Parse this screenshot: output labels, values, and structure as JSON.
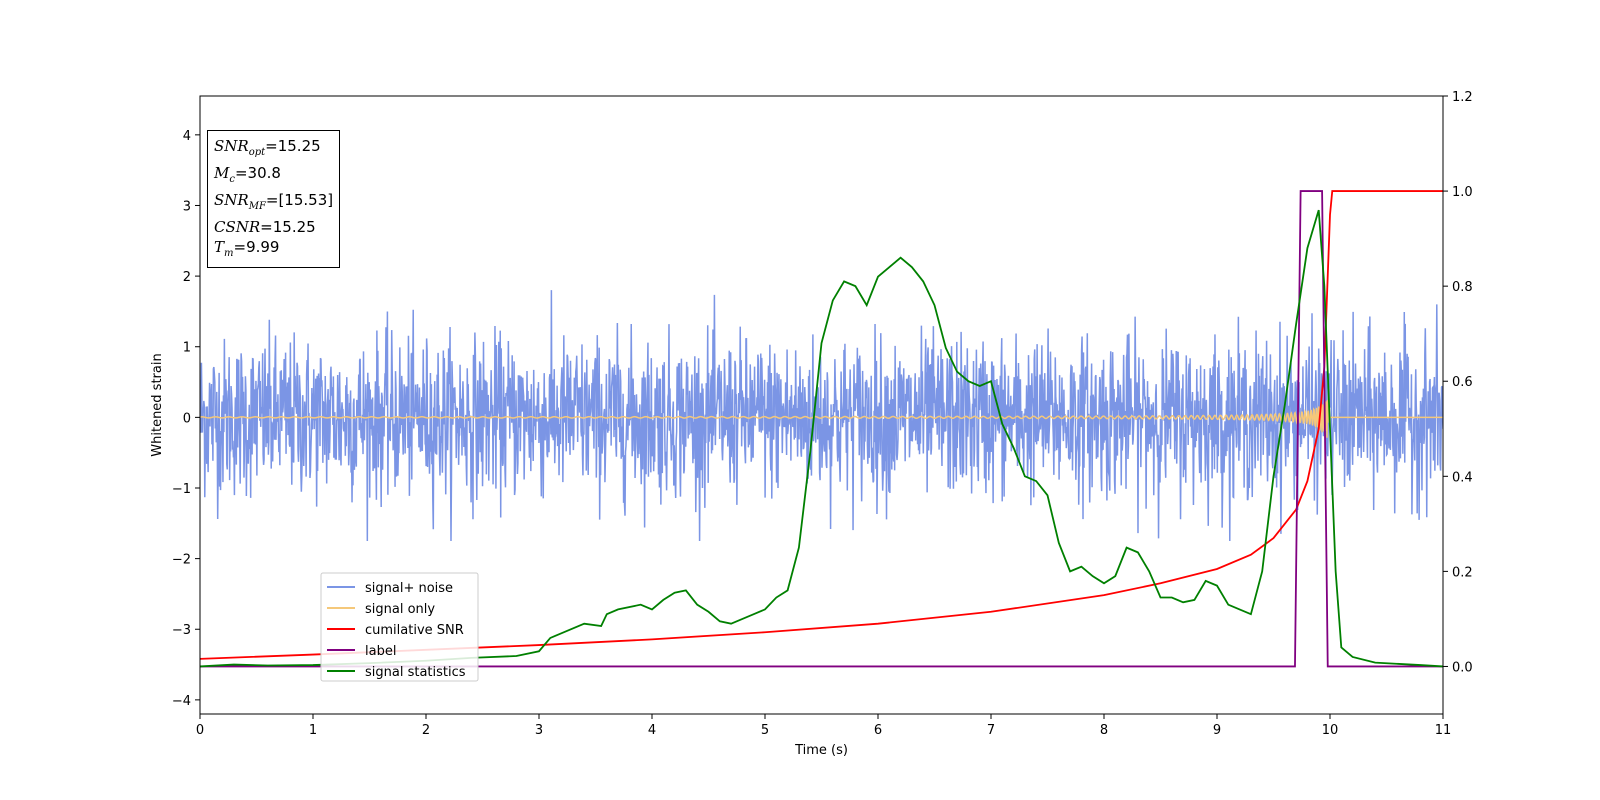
{
  "chart_data": {
    "type": "line",
    "title": "",
    "xlabel": "Time (s)",
    "ylabel": "Whitened strain",
    "y2label": "",
    "xlim": [
      0,
      11
    ],
    "ylim": [
      -4.2,
      4.55
    ],
    "y2lim": [
      -0.1,
      1.2
    ],
    "x_ticks": [
      0,
      1,
      2,
      3,
      4,
      5,
      6,
      7,
      8,
      9,
      10,
      11
    ],
    "y_ticks": [
      -4,
      -3,
      -2,
      -1,
      0,
      1,
      2,
      3,
      4
    ],
    "y_tick_labels": [
      "−4",
      "−3",
      "−2",
      "−1",
      "0",
      "1",
      "2",
      "3",
      "4"
    ],
    "y2_ticks": [
      0.0,
      0.2,
      0.4,
      0.6,
      0.8,
      1.0,
      1.2
    ],
    "y2_tick_labels": [
      "0.0",
      "0.2",
      "0.4",
      "0.6",
      "0.8",
      "1.0",
      "1.2"
    ],
    "grid": false,
    "legend_position": "lower-left",
    "annotation": {
      "snr_opt": {
        "sym": "SNR",
        "sub": "opt",
        "value": "=15.25"
      },
      "mc": {
        "sym": "M",
        "sub": "c",
        "value": "=30.8"
      },
      "snr_mf": {
        "sym": "SNR",
        "sub": "MF",
        "value": "=[15.53]"
      },
      "csnr": {
        "sym": "CSNR",
        "sub": "",
        "value": "=15.25"
      },
      "tm": {
        "sym": "T",
        "sub": "m",
        "value": "=9.99"
      }
    },
    "series": [
      {
        "name": "signal+ noise",
        "axis": "left",
        "color": "#7b95e5",
        "kind": "noise",
        "description_values": {
          "typical_envelope": [
            -1.2,
            1.3
          ],
          "max": 1.9,
          "min": -1.75
        }
      },
      {
        "name": "signal only",
        "axis": "left",
        "color": "#f5c87a",
        "kind": "chirp",
        "merger_time": 9.99,
        "peak_amplitude": 1.0
      },
      {
        "name": "cumilative SNR",
        "axis": "right",
        "color": "#ff0000",
        "x": [
          0,
          1,
          2,
          3,
          4,
          5,
          6,
          7,
          8,
          8.5,
          9,
          9.3,
          9.5,
          9.7,
          9.8,
          9.9,
          9.95,
          10.0,
          10.02,
          11
        ],
        "y": [
          0.016,
          0.025,
          0.035,
          0.045,
          0.057,
          0.072,
          0.09,
          0.115,
          0.15,
          0.175,
          0.205,
          0.235,
          0.27,
          0.33,
          0.39,
          0.5,
          0.63,
          0.95,
          1.0,
          1.0
        ]
      },
      {
        "name": "label",
        "axis": "right",
        "color": "#800080",
        "x": [
          0,
          9.69,
          9.74,
          9.93,
          9.98,
          11
        ],
        "y": [
          0,
          0,
          1,
          1,
          0,
          0
        ]
      },
      {
        "name": "signal statistics",
        "axis": "right",
        "color": "#008000",
        "x": [
          0,
          0.3,
          0.6,
          1,
          1.5,
          2,
          2.4,
          2.8,
          3.0,
          3.1,
          3.2,
          3.4,
          3.55,
          3.6,
          3.7,
          3.9,
          4.0,
          4.1,
          4.2,
          4.3,
          4.4,
          4.5,
          4.6,
          4.7,
          4.8,
          4.9,
          5.0,
          5.1,
          5.2,
          5.3,
          5.4,
          5.5,
          5.6,
          5.7,
          5.8,
          5.9,
          6.0,
          6.1,
          6.2,
          6.3,
          6.4,
          6.5,
          6.6,
          6.7,
          6.8,
          6.9,
          7.0,
          7.1,
          7.2,
          7.3,
          7.4,
          7.5,
          7.6,
          7.7,
          7.8,
          7.9,
          8.0,
          8.1,
          8.2,
          8.3,
          8.4,
          8.5,
          8.6,
          8.7,
          8.8,
          8.9,
          9.0,
          9.1,
          9.2,
          9.3,
          9.4,
          9.5,
          9.6,
          9.7,
          9.8,
          9.9,
          9.95,
          10.0,
          10.05,
          10.1,
          10.2,
          10.4,
          10.8,
          11
        ],
        "y": [
          0.0,
          0.004,
          0.002,
          0.003,
          0.007,
          0.012,
          0.018,
          0.022,
          0.032,
          0.06,
          0.07,
          0.09,
          0.085,
          0.11,
          0.12,
          0.13,
          0.12,
          0.14,
          0.155,
          0.16,
          0.13,
          0.115,
          0.095,
          0.09,
          0.1,
          0.11,
          0.12,
          0.145,
          0.16,
          0.25,
          0.45,
          0.68,
          0.77,
          0.81,
          0.8,
          0.76,
          0.82,
          0.84,
          0.86,
          0.84,
          0.81,
          0.76,
          0.67,
          0.62,
          0.6,
          0.59,
          0.6,
          0.51,
          0.46,
          0.4,
          0.39,
          0.36,
          0.26,
          0.2,
          0.21,
          0.19,
          0.175,
          0.19,
          0.25,
          0.24,
          0.2,
          0.145,
          0.145,
          0.135,
          0.14,
          0.18,
          0.17,
          0.13,
          0.12,
          0.11,
          0.2,
          0.4,
          0.55,
          0.72,
          0.88,
          0.96,
          0.8,
          0.5,
          0.2,
          0.04,
          0.02,
          0.008,
          0.003,
          0.0
        ]
      }
    ]
  }
}
